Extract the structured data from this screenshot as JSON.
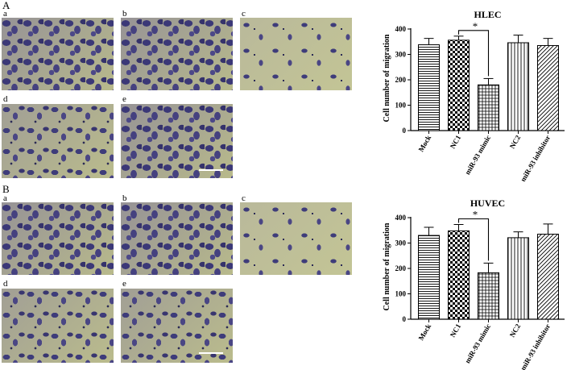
{
  "panels": [
    {
      "letter": "A",
      "images": [
        {
          "letter": "a",
          "density": "dense"
        },
        {
          "letter": "b",
          "density": "dense"
        },
        {
          "letter": "c",
          "density": "sparse"
        },
        {
          "letter": "d",
          "density": "normal"
        },
        {
          "letter": "e",
          "density": "dense"
        }
      ]
    },
    {
      "letter": "B",
      "images": [
        {
          "letter": "a",
          "density": "dense"
        },
        {
          "letter": "b",
          "density": "dense"
        },
        {
          "letter": "c",
          "density": "sparse"
        },
        {
          "letter": "d",
          "density": "normal"
        },
        {
          "letter": "e",
          "density": "normal"
        }
      ]
    }
  ],
  "chart_data": [
    {
      "type": "bar",
      "title": "HLEC",
      "ylabel": "Cell number of migration",
      "xlabel": "",
      "ylim": [
        0,
        400
      ],
      "yticks": [
        "0",
        "100",
        "200",
        "300",
        "400"
      ],
      "categories": [
        "Mock",
        "NC1",
        "miR-93 mimic",
        "NC2",
        "miR-93 inhibitor"
      ],
      "values": [
        338,
        356,
        180,
        346,
        335
      ],
      "errors": [
        25,
        16,
        25,
        30,
        28
      ],
      "patterns": [
        "hlines",
        "checker",
        "grid",
        "vlines",
        "diag"
      ],
      "significance": {
        "from": 1,
        "to": 2,
        "label": "*"
      },
      "grid": false,
      "legend": "none"
    },
    {
      "type": "bar",
      "title": "HUVEC",
      "ylabel": "Cell number of migration",
      "xlabel": "",
      "ylim": [
        0,
        400
      ],
      "yticks": [
        "0",
        "100",
        "200",
        "300",
        "400"
      ],
      "categories": [
        "Mock",
        "NC1",
        "miR-93 mimic",
        "NC2",
        "miR-93 inhibitor"
      ],
      "values": [
        330,
        348,
        183,
        321,
        335
      ],
      "errors": [
        32,
        25,
        38,
        23,
        40
      ],
      "patterns": [
        "hlines",
        "checker",
        "grid",
        "vlines",
        "diag"
      ],
      "significance": {
        "from": 1,
        "to": 2,
        "label": "*"
      },
      "grid": false,
      "legend": "none"
    }
  ]
}
